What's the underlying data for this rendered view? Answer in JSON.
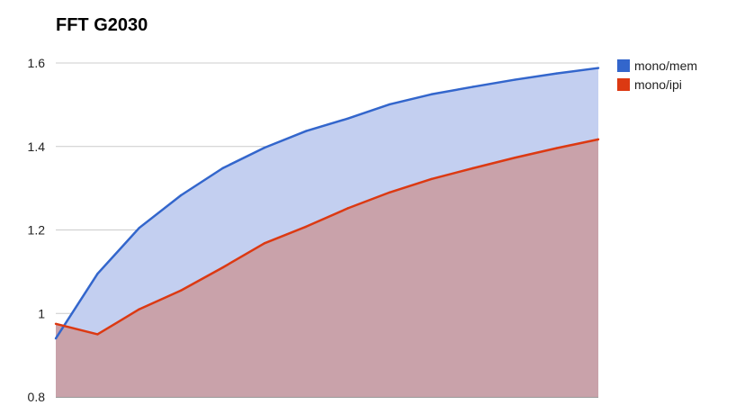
{
  "chart_data": {
    "type": "area",
    "title": "FFT G2030",
    "xlabel": "",
    "ylabel": "",
    "ylim": [
      0.8,
      1.6
    ],
    "yticks": [
      "0.8",
      "1",
      "1.2",
      "1.4",
      "1.6"
    ],
    "grid": true,
    "legend_position": "right",
    "x": [
      1,
      2,
      3,
      4,
      5,
      6,
      7,
      8,
      9,
      10,
      11,
      12,
      13,
      14
    ],
    "series": [
      {
        "name": "mono/mem",
        "color": "#3366cc",
        "fill": "#c3cff0",
        "values": [
          0.94,
          1.095,
          1.205,
          1.283,
          1.348,
          1.397,
          1.437,
          1.467,
          1.501,
          1.525,
          1.543,
          1.56,
          1.575,
          1.588
        ]
      },
      {
        "name": "mono/ipi",
        "color": "#dc3912",
        "fill": "#c9a2aa",
        "values": [
          0.975,
          0.95,
          1.01,
          1.055,
          1.11,
          1.168,
          1.208,
          1.252,
          1.29,
          1.322,
          1.348,
          1.373,
          1.396,
          1.417
        ]
      }
    ]
  }
}
